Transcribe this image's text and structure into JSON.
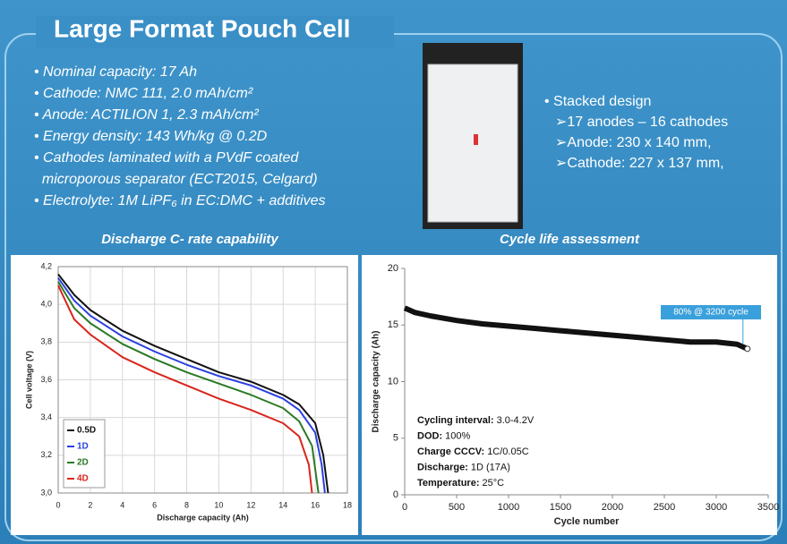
{
  "header": {
    "title": "Large Format Pouch Cell"
  },
  "specs": [
    "Nominal capacity: 17 Ah",
    "Cathode: NMC 111, 2.0 mAh/cm²",
    "Anode: ACTILION 1, 2.3 mAh/cm²",
    "Energy density: 143 Wh/kg @ 0.2D",
    "Cathodes laminated with a PVdF coated",
    "microporous separator (ECT2015, Celgard)",
    "Electrolyte: 1M LiPF₆ in EC:DMC + additives"
  ],
  "design": {
    "title": "Stacked design",
    "items": [
      "17 anodes – 16 cathodes",
      "Anode: 230 x 140 mm,",
      "Cathode: 227 x 137 mm,"
    ]
  },
  "chart_data": [
    {
      "type": "line",
      "title": "Discharge C- rate capability",
      "x_label": "Discharge capacity (Ah)",
      "y_label": "Cell voltage (V)",
      "xlim": [
        0,
        18
      ],
      "xticks": [
        0,
        2,
        4,
        6,
        8,
        10,
        12,
        14,
        16,
        18
      ],
      "ylim": [
        3.0,
        4.2
      ],
      "yticks": [
        {
          "value": 3.0,
          "label": "3,0"
        },
        {
          "value": 3.2,
          "label": "3,2"
        },
        {
          "value": 3.4,
          "label": "3,4"
        },
        {
          "value": 3.6,
          "label": "3,6"
        },
        {
          "value": 3.8,
          "label": "3,8"
        },
        {
          "value": 4.0,
          "label": "4,0"
        },
        {
          "value": 4.2,
          "label": "4,2"
        }
      ],
      "grid": true,
      "legend": "lower left",
      "series": [
        {
          "name": "0.5D",
          "color": "#111111",
          "x": [
            0,
            1,
            2,
            4,
            6,
            8,
            10,
            12,
            14,
            15,
            16,
            16.5,
            16.8
          ],
          "values": [
            4.16,
            4.05,
            3.97,
            3.86,
            3.78,
            3.71,
            3.64,
            3.59,
            3.52,
            3.47,
            3.37,
            3.2,
            3.0
          ]
        },
        {
          "name": "1D",
          "color": "#2b3fe0",
          "x": [
            0,
            1,
            2,
            4,
            6,
            8,
            10,
            12,
            14,
            15,
            16,
            16.4,
            16.6
          ],
          "values": [
            4.14,
            4.02,
            3.94,
            3.83,
            3.75,
            3.68,
            3.62,
            3.57,
            3.5,
            3.44,
            3.32,
            3.15,
            3.0
          ]
        },
        {
          "name": "2D",
          "color": "#2a7a25",
          "x": [
            0,
            1,
            2,
            4,
            6,
            8,
            10,
            12,
            14,
            15,
            15.8,
            16.2
          ],
          "values": [
            4.12,
            3.98,
            3.9,
            3.79,
            3.71,
            3.64,
            3.58,
            3.52,
            3.45,
            3.38,
            3.25,
            3.0
          ]
        },
        {
          "name": "4D",
          "color": "#d9261c",
          "x": [
            0,
            1,
            2,
            4,
            6,
            8,
            10,
            12,
            14,
            15,
            15.6,
            15.8
          ],
          "values": [
            4.1,
            3.92,
            3.84,
            3.72,
            3.64,
            3.57,
            3.5,
            3.44,
            3.37,
            3.3,
            3.15,
            3.0
          ]
        }
      ]
    },
    {
      "type": "line",
      "title": "Cycle life assessment",
      "x_label": "Cycle number",
      "y_label": "Discharge capacity (Ah)",
      "xlim": [
        0,
        3500
      ],
      "xticks": [
        0,
        500,
        1000,
        1500,
        2000,
        2500,
        3000,
        3500
      ],
      "ylim": [
        0,
        20
      ],
      "yticks": [
        0,
        5,
        10,
        15,
        20
      ],
      "grid": false,
      "callout": "80% @ 3200 cycle",
      "notes": [
        {
          "label": "Cycling interval:",
          "value": "3.0-4.2V"
        },
        {
          "label": "DOD:",
          "value": "100%"
        },
        {
          "label": "Charge CCCV:",
          "value": "1C/0.05C"
        },
        {
          "label": "Discharge:",
          "value": "1D (17A)"
        },
        {
          "label": "Temperature:",
          "value": "25°C"
        }
      ],
      "series": [
        {
          "color": "#111111",
          "x": [
            0,
            100,
            250,
            500,
            750,
            1000,
            1250,
            1500,
            1750,
            2000,
            2250,
            2500,
            2750,
            3000,
            3200,
            3300
          ],
          "values": [
            16.5,
            16.1,
            15.8,
            15.4,
            15.1,
            14.9,
            14.7,
            14.5,
            14.3,
            14.1,
            13.9,
            13.7,
            13.5,
            13.5,
            13.3,
            12.9
          ]
        }
      ]
    }
  ]
}
